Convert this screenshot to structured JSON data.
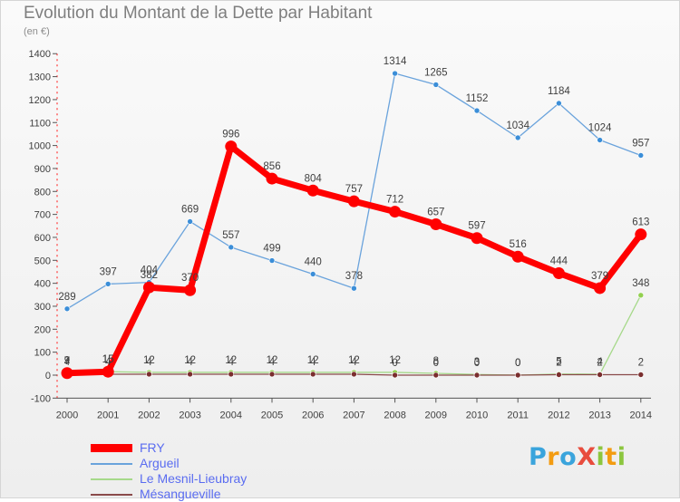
{
  "title": "Evolution du Montant de la Dette par Habitant",
  "unit": "(en €)",
  "logo": {
    "text": "Proxiti",
    "letters": [
      {
        "ch": "P",
        "color": "#3aa4dc"
      },
      {
        "ch": "r",
        "color": "#f39c12"
      },
      {
        "ch": "o",
        "color": "#3aa4dc"
      },
      {
        "ch": "X",
        "color": "#e84c3d"
      },
      {
        "ch": "i",
        "color": "#8cc63e"
      },
      {
        "ch": "t",
        "color": "#f39c12"
      },
      {
        "ch": "i",
        "color": "#8cc63e"
      }
    ]
  },
  "chart_data": {
    "type": "line",
    "title": "Evolution du Montant de la Dette par Habitant",
    "ylabel": "(en €)",
    "xlabel": "",
    "ylim": [
      -100,
      1400
    ],
    "ytick_step": 100,
    "grid": false,
    "categories": [
      "2000",
      "2001",
      "2002",
      "2003",
      "2004",
      "2005",
      "2006",
      "2007",
      "2008",
      "2009",
      "2010",
      "2011",
      "2012",
      "2013",
      "2014"
    ],
    "series": [
      {
        "name": "Arg",
        "legend": "Argueil",
        "color": "#6aa3dc",
        "marker_fill": "#3b8ed8",
        "values": [
          289,
          397,
          404,
          669,
          557,
          499,
          440,
          378,
          1314,
          1265,
          1152,
          1034,
          1184,
          1024,
          957
        ],
        "labels": [
          "289",
          "397",
          "404",
          "669",
          "557",
          "499",
          "440",
          "378",
          "1314",
          "1265",
          "1152",
          "1034",
          "1184",
          "1024",
          "957"
        ],
        "bold": false
      },
      {
        "name": "LML",
        "legend": "Le Mesnil-Lieubray",
        "color": "#a6d98a",
        "marker_fill": "#92d050",
        "values": [
          7,
          15,
          12,
          12,
          12,
          12,
          12,
          12,
          12,
          8,
          3,
          0,
          5,
          4,
          348
        ],
        "labels": [
          "7",
          "15",
          "12",
          "12",
          "12",
          "12",
          "12",
          "12",
          "12",
          "8",
          "3",
          "0",
          "5",
          "4",
          "348"
        ],
        "bold": false
      },
      {
        "name": "Mes",
        "legend": "Mésangueville",
        "color": "#8a4a4a",
        "marker_fill": "#7a2e2e",
        "values": [
          4,
          4,
          4,
          4,
          4,
          4,
          4,
          4,
          0,
          0,
          0,
          0,
          2,
          2,
          2
        ],
        "labels": [
          "4",
          "4",
          "4",
          "4",
          "4",
          "4",
          "4",
          "4",
          "0",
          "0",
          "0",
          "0",
          "2",
          "2",
          "2"
        ],
        "bold": false
      },
      {
        "name": "FRY",
        "legend": "FRY",
        "color": "#ff0000",
        "marker_fill": "#ff0000",
        "values": [
          9,
          15,
          382,
          370,
          996,
          856,
          804,
          757,
          712,
          657,
          597,
          516,
          444,
          379,
          613
        ],
        "labels": [
          "9",
          "15",
          "382",
          "370",
          "996",
          "856",
          "804",
          "757",
          "712",
          "657",
          "597",
          "516",
          "444",
          "379",
          "613"
        ],
        "bold": true
      }
    ],
    "legend_order": [
      "FRY",
      "Arg",
      "LML",
      "Mes"
    ]
  }
}
